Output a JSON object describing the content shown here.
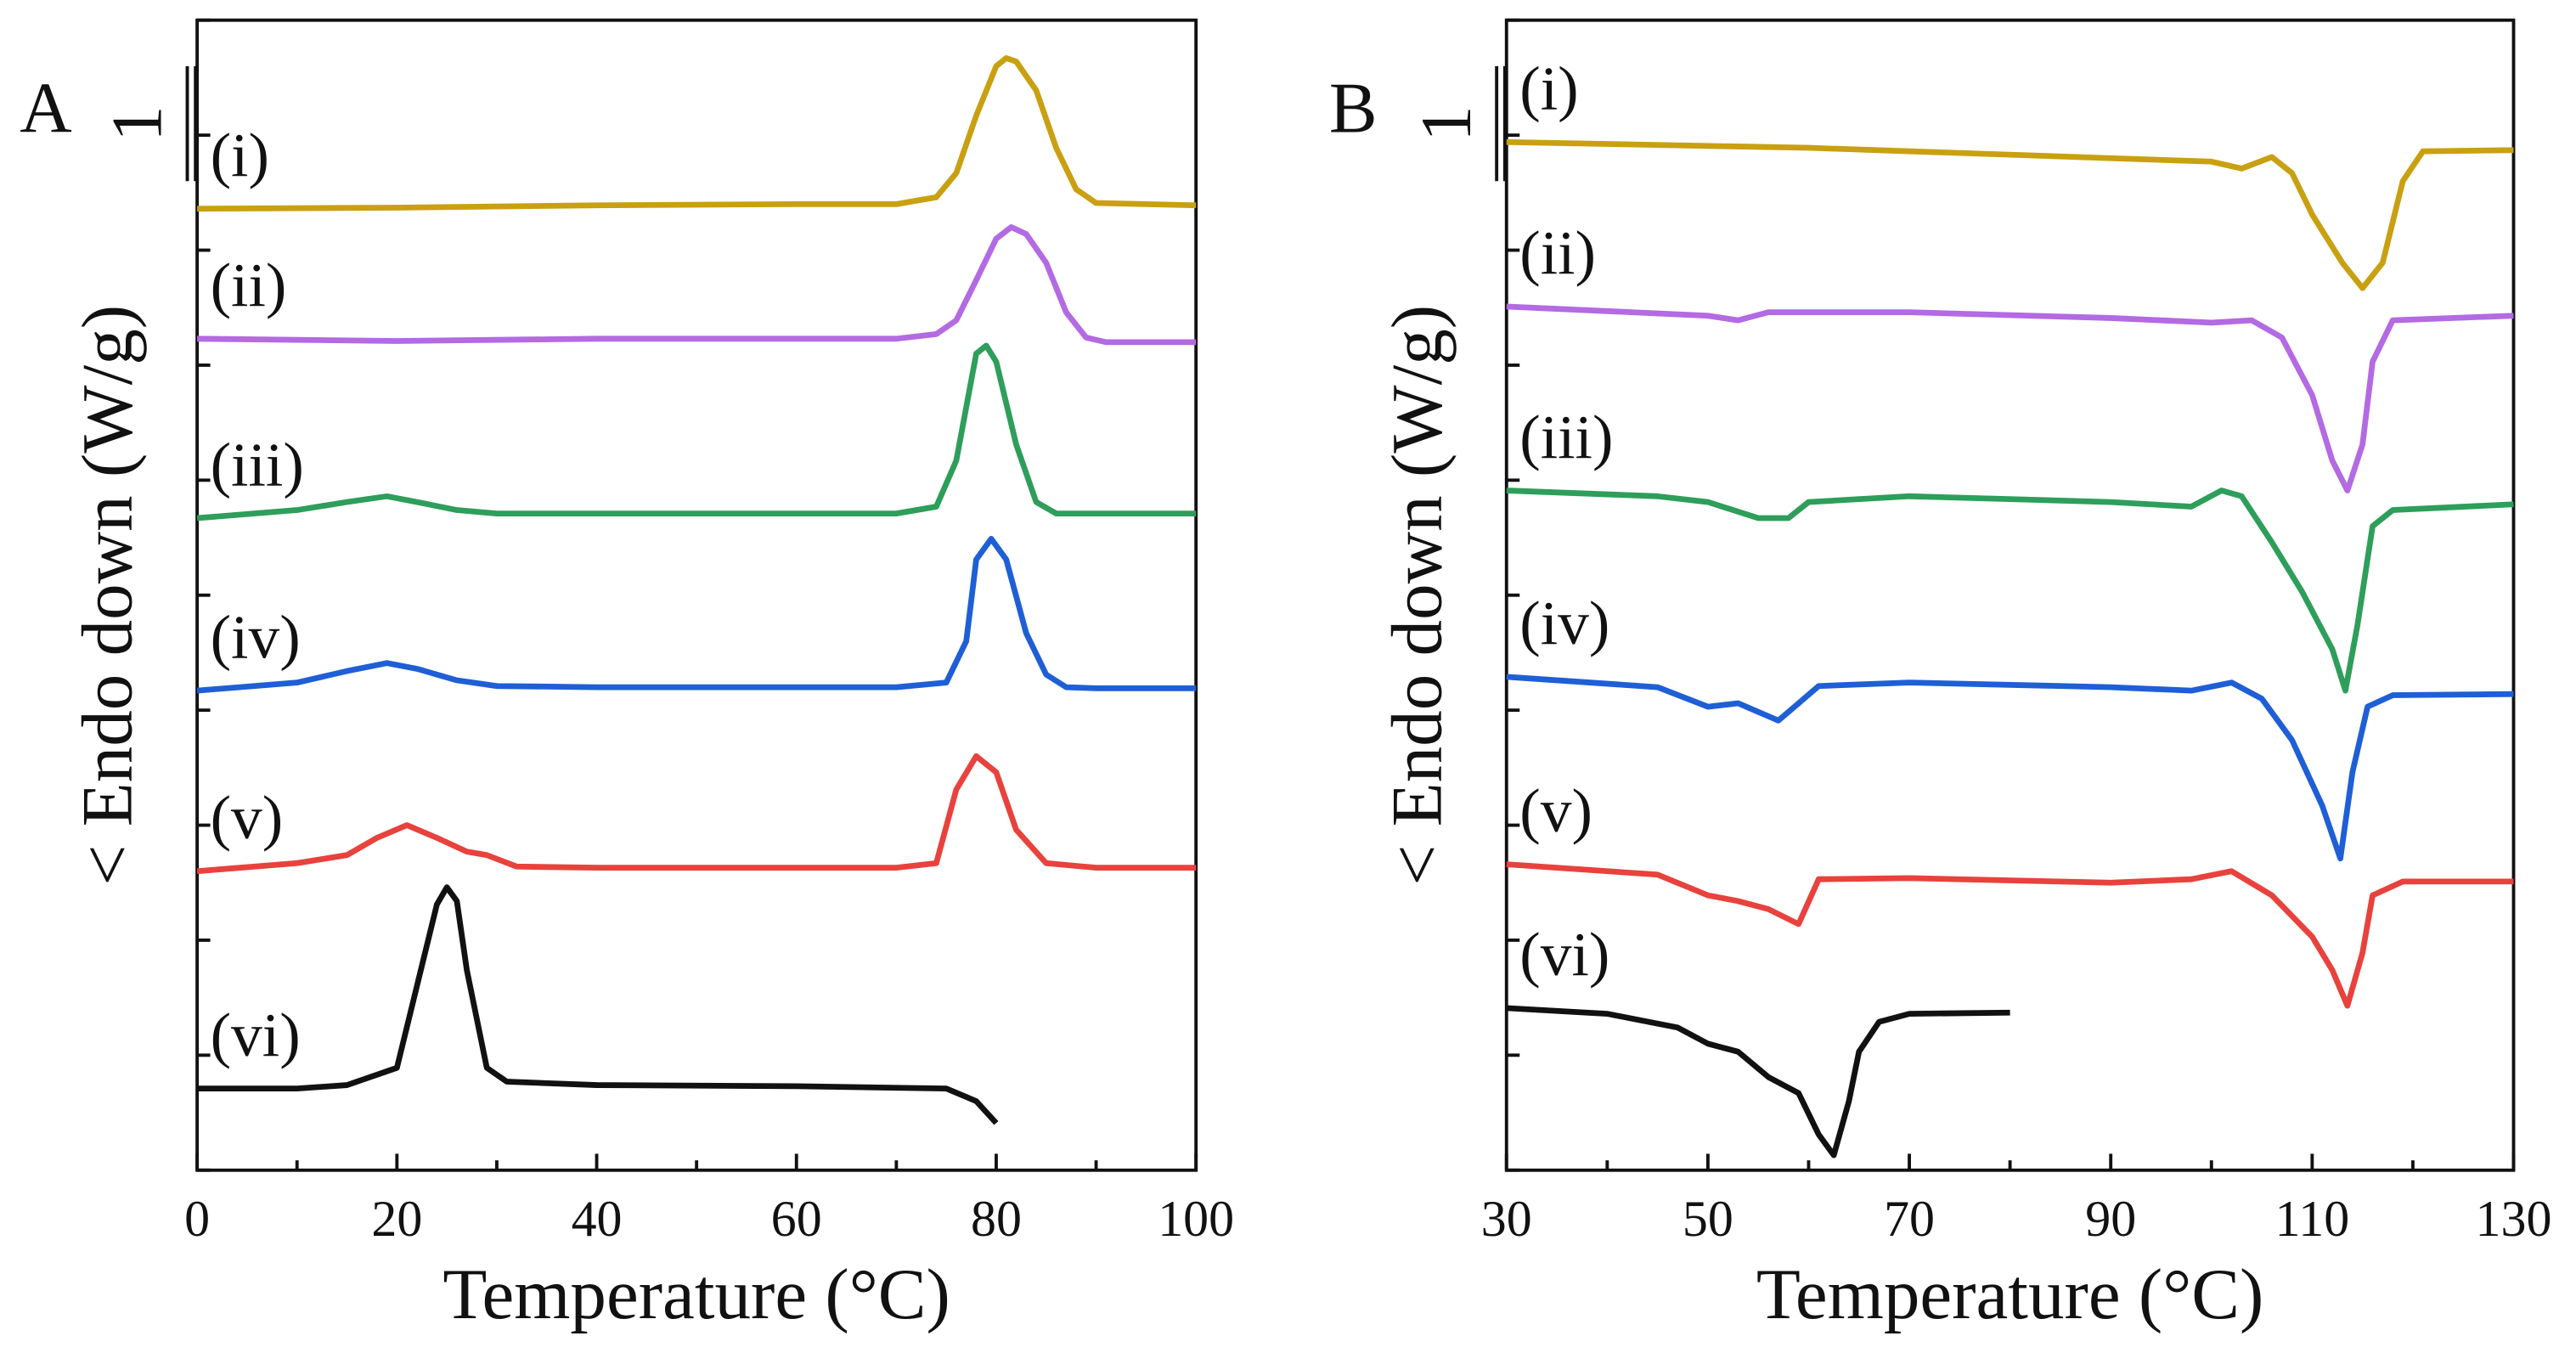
{
  "chart_data": [
    {
      "type": "line",
      "panel_label": "A",
      "xlabel": "Temperature (°C)",
      "ylabel": "< Endo down (W/g)",
      "xlim": [
        0,
        100
      ],
      "xticks": [
        0,
        20,
        40,
        60,
        80,
        100
      ],
      "ylim": [
        0,
        10
      ],
      "yticks": [
        0,
        1,
        2,
        3,
        4,
        5,
        6,
        7,
        8,
        9,
        10
      ],
      "scale_bar": {
        "label": "1",
        "value": 1
      },
      "series": [
        {
          "name": "(i)",
          "color": "#c9a012",
          "x": [
            0,
            20,
            40,
            60,
            70,
            74,
            76,
            78,
            80,
            81,
            82,
            84,
            86,
            88,
            90,
            100
          ],
          "values": [
            8.36,
            8.37,
            8.39,
            8.4,
            8.4,
            8.46,
            8.67,
            9.17,
            9.6,
            9.67,
            9.64,
            9.39,
            8.89,
            8.53,
            8.41,
            8.39
          ]
        },
        {
          "name": "(ii)",
          "color": "#b36ae2",
          "x": [
            0,
            20,
            40,
            60,
            70,
            74,
            76,
            78,
            80,
            81.5,
            83,
            85,
            87,
            89,
            91,
            100
          ],
          "values": [
            7.23,
            7.21,
            7.23,
            7.23,
            7.23,
            7.27,
            7.39,
            7.74,
            8.1,
            8.2,
            8.14,
            7.89,
            7.46,
            7.24,
            7.2,
            7.2
          ]
        },
        {
          "name": "(iii)",
          "color": "#2e9e5b",
          "x": [
            0,
            10,
            15,
            19,
            22,
            26,
            30,
            40,
            60,
            70,
            74,
            76,
            78,
            79,
            80,
            82,
            84,
            86,
            90,
            100
          ],
          "values": [
            5.67,
            5.74,
            5.81,
            5.86,
            5.81,
            5.74,
            5.71,
            5.71,
            5.71,
            5.71,
            5.77,
            6.17,
            7.1,
            7.17,
            7.03,
            6.31,
            5.81,
            5.71,
            5.71,
            5.71
          ]
        },
        {
          "name": "(iv)",
          "color": "#1e5fd6",
          "x": [
            0,
            10,
            15,
            19,
            22,
            26,
            30,
            40,
            60,
            70,
            75,
            77,
            78,
            79.5,
            81,
            83,
            85,
            87,
            90,
            100
          ],
          "values": [
            4.17,
            4.24,
            4.34,
            4.41,
            4.36,
            4.26,
            4.21,
            4.2,
            4.2,
            4.2,
            4.24,
            4.6,
            5.31,
            5.49,
            5.31,
            4.67,
            4.31,
            4.2,
            4.19,
            4.19
          ]
        },
        {
          "name": "(v)",
          "color": "#e8423d",
          "x": [
            0,
            10,
            15,
            18,
            21,
            24,
            27,
            29,
            32,
            40,
            60,
            70,
            74,
            76,
            78,
            80,
            82,
            85,
            90,
            100
          ],
          "values": [
            2.6,
            2.67,
            2.74,
            2.89,
            3.0,
            2.89,
            2.77,
            2.74,
            2.64,
            2.63,
            2.63,
            2.63,
            2.67,
            3.31,
            3.6,
            3.46,
            2.96,
            2.67,
            2.63,
            2.63
          ]
        },
        {
          "name": "(vi)",
          "color": "#111111",
          "x": [
            0,
            10,
            15,
            20,
            22,
            24,
            25,
            26,
            27,
            29,
            31,
            40,
            60,
            75,
            78,
            80
          ],
          "values": [
            0.71,
            0.71,
            0.74,
            0.89,
            1.6,
            2.31,
            2.46,
            2.34,
            1.74,
            0.89,
            0.77,
            0.74,
            0.73,
            0.71,
            0.6,
            0.41
          ]
        }
      ]
    },
    {
      "type": "line",
      "panel_label": "B",
      "xlabel": "Temperature (°C)",
      "ylabel": "< Endo down (W/g)",
      "xlim": [
        30,
        130
      ],
      "xticks": [
        30,
        50,
        70,
        90,
        110,
        130
      ],
      "ylim": [
        0,
        10
      ],
      "yticks": [
        0,
        1,
        2,
        3,
        4,
        5,
        6,
        7,
        8,
        9,
        10
      ],
      "scale_bar": {
        "label": "1",
        "value": 1
      },
      "series": [
        {
          "name": "(i)",
          "color": "#c9a012",
          "x": [
            30,
            60,
            90,
            100,
            103,
            106,
            108,
            110,
            113,
            115,
            117,
            119,
            121,
            130
          ],
          "values": [
            8.94,
            8.89,
            8.8,
            8.77,
            8.71,
            8.81,
            8.67,
            8.31,
            7.89,
            7.67,
            7.89,
            8.6,
            8.86,
            8.87
          ]
        },
        {
          "name": "(ii)",
          "color": "#b36ae2",
          "x": [
            30,
            50,
            53,
            56,
            70,
            90,
            100,
            104,
            107,
            110,
            112,
            113.5,
            115,
            116,
            118,
            130
          ],
          "values": [
            7.51,
            7.43,
            7.39,
            7.46,
            7.46,
            7.41,
            7.37,
            7.39,
            7.24,
            6.74,
            6.17,
            5.91,
            6.31,
            7.03,
            7.39,
            7.43
          ]
        },
        {
          "name": "(iii)",
          "color": "#2e9e5b",
          "x": [
            30,
            45,
            50,
            55,
            58,
            60,
            70,
            90,
            98,
            101,
            103,
            106,
            109,
            112,
            113.3,
            114.5,
            116,
            118,
            130
          ],
          "values": [
            5.91,
            5.86,
            5.81,
            5.67,
            5.67,
            5.81,
            5.86,
            5.81,
            5.77,
            5.91,
            5.86,
            5.46,
            5.03,
            4.53,
            4.17,
            4.74,
            5.6,
            5.74,
            5.79
          ]
        },
        {
          "name": "(iv)",
          "color": "#1e5fd6",
          "x": [
            30,
            45,
            50,
            53,
            57,
            59,
            61,
            70,
            90,
            98,
            102,
            105,
            108,
            111,
            112.8,
            114,
            115.5,
            118,
            130
          ],
          "values": [
            4.29,
            4.2,
            4.03,
            4.06,
            3.91,
            4.06,
            4.21,
            4.24,
            4.2,
            4.17,
            4.24,
            4.1,
            3.74,
            3.17,
            2.71,
            3.46,
            4.03,
            4.13,
            4.14
          ]
        },
        {
          "name": "(v)",
          "color": "#e8423d",
          "x": [
            30,
            45,
            50,
            53,
            56,
            59,
            61,
            70,
            90,
            98,
            102,
            106,
            110,
            112,
            113.5,
            115,
            116,
            119,
            130
          ],
          "values": [
            2.66,
            2.57,
            2.39,
            2.34,
            2.27,
            2.14,
            2.53,
            2.54,
            2.5,
            2.53,
            2.6,
            2.39,
            2.03,
            1.74,
            1.43,
            1.89,
            2.39,
            2.51,
            2.51
          ]
        },
        {
          "name": "(vi)",
          "color": "#111111",
          "x": [
            30,
            40,
            47,
            50,
            53,
            56,
            59,
            61,
            62.5,
            64,
            65,
            67,
            70,
            80
          ],
          "values": [
            1.41,
            1.36,
            1.24,
            1.1,
            1.03,
            0.81,
            0.67,
            0.31,
            0.13,
            0.6,
            1.03,
            1.29,
            1.36,
            1.37
          ]
        }
      ]
    }
  ]
}
